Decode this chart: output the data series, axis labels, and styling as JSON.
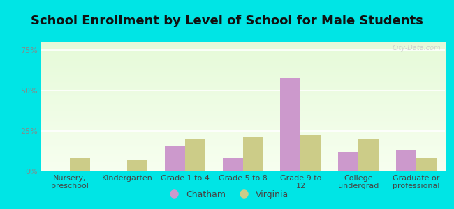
{
  "title": "School Enrollment by Level of School for Male Students",
  "categories": [
    "Nursery,\npreschool",
    "Kindergarten",
    "Grade 1 to 4",
    "Grade 5 to 8",
    "Grade 9 to\n12",
    "College\nundergrad",
    "Graduate or\nprofessional"
  ],
  "chatham": [
    0.5,
    0.5,
    16.0,
    8.0,
    57.5,
    12.0,
    13.0
  ],
  "virginia": [
    8.0,
    7.0,
    20.0,
    21.0,
    22.5,
    20.0,
    8.0
  ],
  "chatham_color": "#cc99cc",
  "virginia_color": "#cccc88",
  "bg_color": "#00e5e5",
  "title_color": "#111111",
  "ytick_color": "#888888",
  "xtick_color": "#444444",
  "title_fontsize": 13,
  "tick_fontsize": 8,
  "legend_fontsize": 9,
  "ylim": [
    0,
    80
  ],
  "yticks": [
    0,
    25,
    50,
    75
  ],
  "ytick_labels": [
    "0%",
    "25%",
    "50%",
    "75%"
  ],
  "bar_width": 0.35,
  "watermark": "City-Data.com"
}
